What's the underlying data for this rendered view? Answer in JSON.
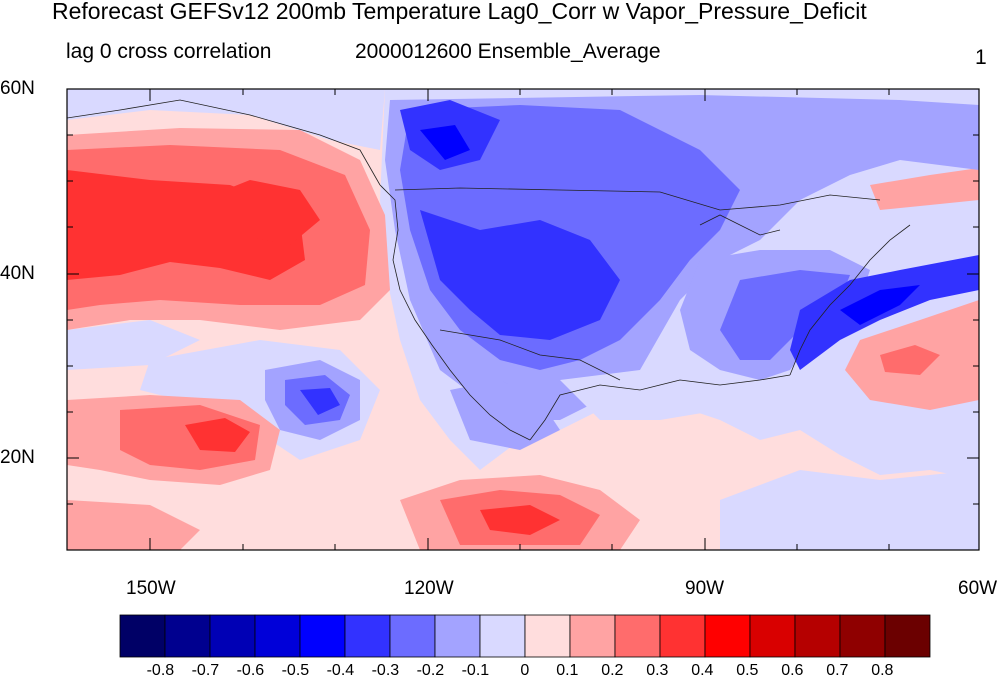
{
  "title": "Reforecast GEFSv12 200mb Temperature Lag0_Corr w Vapor_Pressure_Deficit",
  "subtitle_left": "lag 0 cross correlation",
  "subtitle_center": "2000012600 Ensemble_Average",
  "subtitle_right": "1",
  "lat_labels": [
    "60N",
    "40N",
    "20N"
  ],
  "lon_labels": [
    "150W",
    "120W",
    "90W",
    "60W"
  ],
  "colorbar": {
    "colors": [
      "#000066",
      "#00008f",
      "#0000b5",
      "#0000d9",
      "#0000ff",
      "#3232ff",
      "#6c6cff",
      "#a3a3ff",
      "#d9d9ff",
      "#ffdddd",
      "#ffa3a3",
      "#ff6c6c",
      "#ff3232",
      "#ff0000",
      "#d90000",
      "#b50000",
      "#8f0000",
      "#6b0000"
    ],
    "labels": [
      "-0.8",
      "-0.7",
      "-0.6",
      "-0.5",
      "-0.4",
      "-0.3",
      "-0.2",
      "-0.1",
      "0",
      "0.1",
      "0.2",
      "0.3",
      "0.4",
      "0.5",
      "0.6",
      "0.7",
      "0.8"
    ]
  },
  "map_palette": {
    "neutral_blue": "#d9d9ff",
    "light_blue": "#a3a3ff",
    "mid_blue": "#6c6cff",
    "blue": "#3232ff",
    "deep_blue": "#0000ff",
    "neutral_red": "#ffdddd",
    "light_red": "#ffa3a3",
    "mid_red": "#ff6c6c",
    "red": "#ff3232"
  }
}
